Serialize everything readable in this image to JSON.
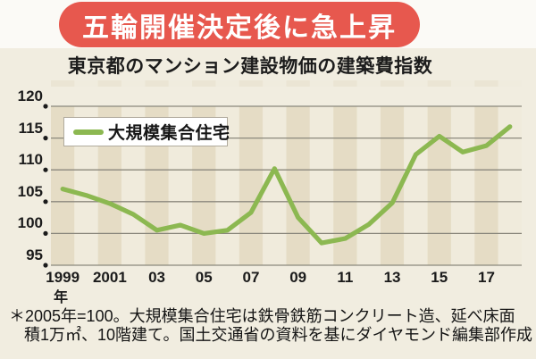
{
  "banner": {
    "text": "五輪開催決定後に急上昇",
    "bg_color": "#e7584e",
    "text_color": "#ffffff"
  },
  "title": "東京都のマンション建設物価の建築費指数",
  "legend": {
    "label": "大規模集合住宅",
    "line_color": "#8cb851"
  },
  "footnote": {
    "lines": [
      "＊2005年=100。大規模集合住宅は鉄骨鉄筋コンクリート造、延べ床面",
      "積1万㎡、10階建て。国土交通省の資料を基にダイヤモンド編集部作成"
    ]
  },
  "chart_data": {
    "type": "line",
    "title": "東京都のマンション建設物価の建築費指数",
    "x_unit": "年",
    "xlim": [
      1999,
      2018
    ],
    "ylim": [
      95,
      120
    ],
    "y_ticks": [
      95,
      100,
      105,
      110,
      115,
      120
    ],
    "x_tick_labels": [
      {
        "year": 1999,
        "label": "1999"
      },
      {
        "year": 2001,
        "label": "2001"
      },
      {
        "year": 2003,
        "label": "03"
      },
      {
        "year": 2005,
        "label": "05"
      },
      {
        "year": 2007,
        "label": "07"
      },
      {
        "year": 2009,
        "label": "09"
      },
      {
        "year": 2011,
        "label": "11"
      },
      {
        "year": 2013,
        "label": "13"
      },
      {
        "year": 2015,
        "label": "15"
      },
      {
        "year": 2017,
        "label": "17"
      }
    ],
    "series": [
      {
        "name": "大規模集合住宅",
        "color": "#8cb851",
        "x": [
          1999,
          2000,
          2001,
          2002,
          2003,
          2004,
          2005,
          2006,
          2007,
          2008,
          2009,
          2010,
          2011,
          2012,
          2013,
          2014,
          2015,
          2016,
          2017,
          2018
        ],
        "values": [
          107.0,
          106.0,
          104.7,
          103.0,
          100.5,
          101.3,
          100.0,
          100.5,
          103.3,
          110.2,
          102.5,
          98.5,
          99.2,
          101.4,
          104.8,
          112.4,
          115.3,
          112.8,
          113.8,
          116.8
        ]
      }
    ],
    "legend_position": "top-left-inside",
    "grid": true,
    "grid_color": "#8b887d",
    "stripe_dark": "#e5dcc5",
    "stripe_light": "#f0ebdc",
    "dot_color": "#1b1b1b"
  }
}
